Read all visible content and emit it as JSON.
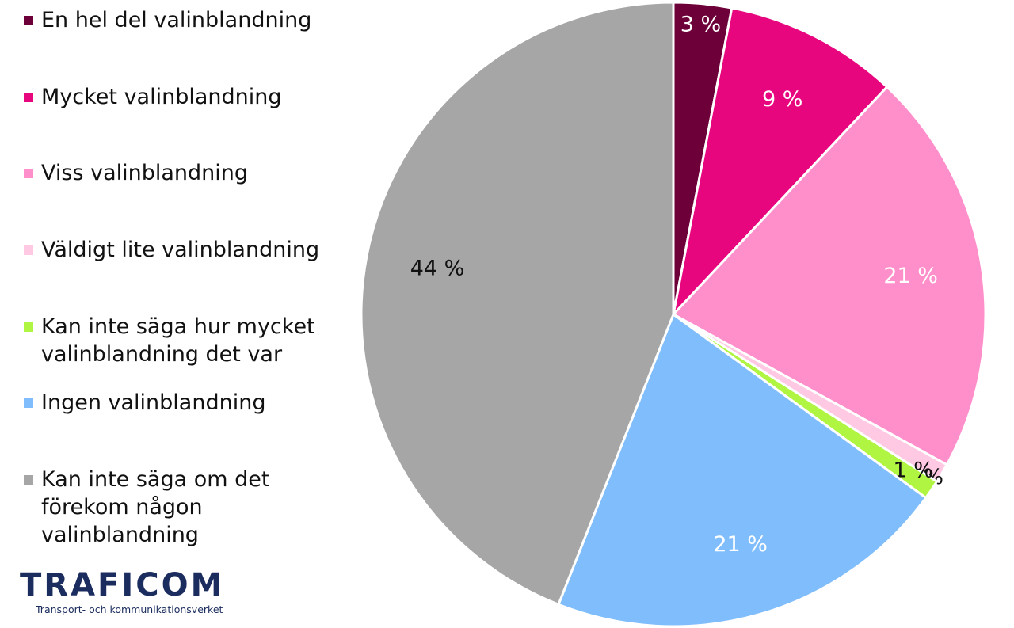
{
  "chart_data": {
    "type": "pie",
    "categories": [
      "En hel del valinblandning",
      "Mycket valinblandning",
      "Viss valinblandning",
      "Väldigt lite valinblandning",
      "Kan inte säga hur mycket valinblandning det var",
      "Ingen valinblandning",
      "Kan inte säga om det förekom någon valinblandning"
    ],
    "values": [
      3,
      9,
      21,
      1,
      1,
      21,
      44
    ],
    "value_labels": [
      "3 %",
      "9 %",
      "21 %",
      "1 %",
      "1 %",
      "21 %",
      "44 %"
    ],
    "colors": [
      "#6d0039",
      "#e8067f",
      "#ff8fcb",
      "#ffc9e4",
      "#b0f542",
      "#80bdfc",
      "#a6a6a6"
    ],
    "legend": "left"
  },
  "logo": {
    "name": "TRAFICOM",
    "tagline": "Transport- och kommunikationsverket"
  }
}
